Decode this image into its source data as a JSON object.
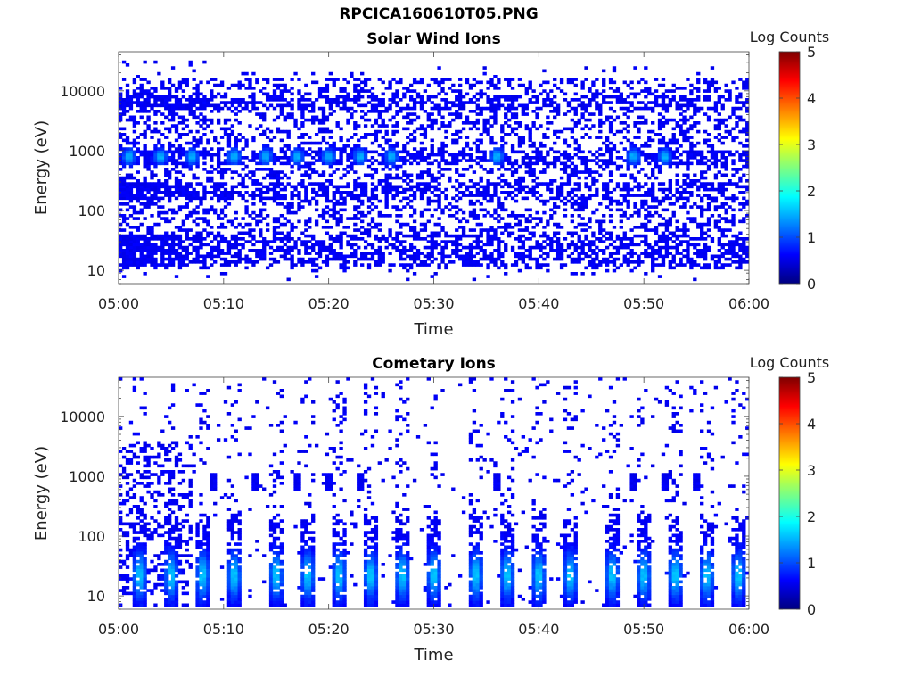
{
  "figure_title": "RPCICA160610T05.PNG",
  "colors": {
    "colormap": [
      "#00007f",
      "#0000ff",
      "#007fff",
      "#00ffff",
      "#7fff7f",
      "#ffff00",
      "#ff7f00",
      "#ff0000",
      "#7f0000"
    ]
  },
  "chart_data": [
    {
      "type": "heatmap",
      "title": "Solar Wind Ions",
      "xlabel": "Time",
      "ylabel": "Energy (eV)",
      "xlim": [
        "05:00",
        "06:00"
      ],
      "xticks": [
        "05:00",
        "05:10",
        "05:20",
        "05:30",
        "05:40",
        "05:50",
        "06:00"
      ],
      "yscale": "log",
      "ylim": [
        6,
        45000
      ],
      "yticks": [
        10,
        100,
        1000,
        10000
      ],
      "ytick_labels": [
        "10",
        "100",
        "1000",
        "10000"
      ],
      "colorbar": {
        "label": "Log Counts",
        "range": [
          0,
          5
        ],
        "ticks": [
          "0",
          "1",
          "2",
          "3",
          "4",
          "5"
        ]
      },
      "features": {
        "background_bands_eV": [
          [
            5000,
            8000
          ],
          [
            600,
            1000
          ],
          [
            150,
            300
          ],
          [
            12,
            40
          ]
        ],
        "peak_times": [
          "05:01",
          "05:04",
          "05:07",
          "05:11",
          "05:14",
          "05:17",
          "05:20",
          "05:23",
          "05:26",
          "05:36",
          "05:49",
          "05:52"
        ],
        "peak_energy_eV": 800,
        "max_log_counts": 1.1
      }
    },
    {
      "type": "heatmap",
      "title": "Cometary Ions",
      "xlabel": "Time",
      "ylabel": "Energy (eV)",
      "xlim": [
        "05:00",
        "06:00"
      ],
      "xticks": [
        "05:00",
        "05:10",
        "05:20",
        "05:30",
        "05:40",
        "05:50",
        "06:00"
      ],
      "yscale": "log",
      "ylim": [
        6,
        45000
      ],
      "yticks": [
        10,
        100,
        1000,
        10000
      ],
      "ytick_labels": [
        "10",
        "100",
        "1000",
        "10000"
      ],
      "colorbar": {
        "label": "Log Counts",
        "range": [
          0,
          5
        ],
        "ticks": [
          "0",
          "1",
          "2",
          "3",
          "4",
          "5"
        ]
      },
      "features": {
        "peak_times": [
          "05:02",
          "05:05",
          "05:08",
          "05:11",
          "05:15",
          "05:18",
          "05:21",
          "05:24",
          "05:27",
          "05:30",
          "05:34",
          "05:37",
          "05:40",
          "05:43",
          "05:47",
          "05:50",
          "05:53",
          "05:56",
          "05:59"
        ],
        "peak_energy_eV": 22,
        "max_log_counts": 1.2,
        "bursts_1000eV_times": [
          "05:09",
          "05:13",
          "05:17",
          "05:20",
          "05:23",
          "05:36",
          "05:49",
          "05:52",
          "05:55"
        ]
      }
    }
  ]
}
